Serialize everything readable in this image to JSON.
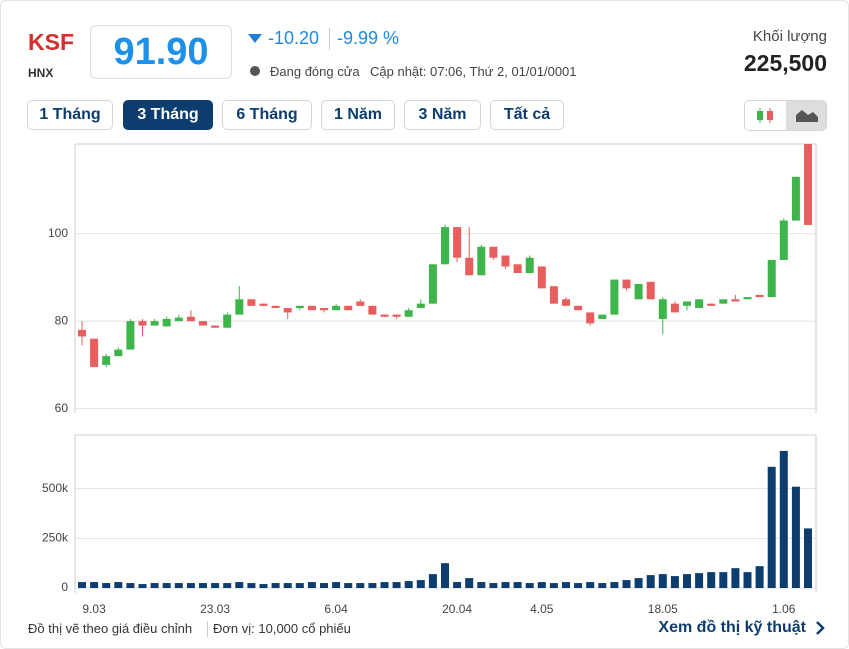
{
  "header": {
    "symbol": "KSF",
    "exchange": "HNX",
    "price": "91.90",
    "change": "-10.20",
    "change_percent": "-9.99 %",
    "status": "Đang đóng cửa",
    "updated": "Cập nhật: 07:06, Thứ 2, 01/01/0001",
    "volume_label": "Khối lượng",
    "volume": "225,500"
  },
  "tabs": [
    {
      "label": "1 Tháng",
      "active": false
    },
    {
      "label": "3 Tháng",
      "active": true
    },
    {
      "label": "6 Tháng",
      "active": false
    },
    {
      "label": "1 Năm",
      "active": false
    },
    {
      "label": "3 Năm",
      "active": false
    },
    {
      "label": "Tất cả",
      "active": false
    }
  ],
  "chart_data": [
    {
      "type": "candlestick",
      "up_color": "#3db54a",
      "down_color": "#e85d5d",
      "grid": true,
      "open": [
        78,
        76,
        70,
        72,
        73.5,
        80,
        79,
        78.8,
        80,
        81,
        80,
        79,
        78.5,
        81.5,
        85,
        84,
        83.5,
        83,
        83,
        83.5,
        83,
        82.5,
        83.5,
        84.5,
        83.5,
        81.5,
        81.5,
        81,
        83,
        84,
        93,
        101.5,
        94.5,
        90.5,
        97,
        95,
        93,
        91,
        92.5,
        88,
        85,
        83.5,
        82,
        80.5,
        81.5,
        89.5,
        85,
        89,
        80.5,
        84,
        83.5,
        83,
        84,
        84,
        85,
        85,
        86,
        85.5,
        94,
        103,
        120.5
      ],
      "high": [
        80,
        76,
        72.5,
        74,
        80.5,
        80.5,
        80.5,
        81,
        81.5,
        82.5,
        80,
        79,
        82,
        88,
        85,
        84,
        83.5,
        83,
        83.5,
        83.5,
        83,
        84,
        83.5,
        85,
        83.5,
        81.5,
        81.5,
        83,
        85,
        93,
        102,
        101.5,
        101.5,
        97.5,
        97,
        95,
        93,
        95,
        92.5,
        88,
        85.5,
        83.5,
        82,
        81.5,
        89.5,
        89.5,
        88.5,
        89,
        85.5,
        84.5,
        84.5,
        85,
        84,
        85,
        86,
        85.5,
        86,
        94,
        103.5,
        113,
        120.5
      ],
      "low": [
        74.5,
        69.5,
        69.5,
        72,
        73.5,
        76.5,
        79,
        78.8,
        80,
        80,
        79,
        78.5,
        78.5,
        81.5,
        83.5,
        83.5,
        83,
        80.5,
        82.5,
        82.5,
        82,
        82.5,
        82.5,
        83.5,
        81.5,
        81,
        80.5,
        81,
        83,
        84,
        93,
        93.5,
        90.5,
        90.5,
        94,
        92,
        91,
        91,
        87.5,
        84,
        83.5,
        82.5,
        79,
        80.5,
        81.5,
        87,
        85,
        85,
        77,
        82,
        82.5,
        83,
        83.5,
        84,
        84.5,
        85,
        85.5,
        85.5,
        94,
        103,
        102
      ],
      "close": [
        76.5,
        69.5,
        72,
        73.5,
        80,
        79,
        80,
        80.5,
        80.8,
        80,
        79,
        78.5,
        81.5,
        85,
        83.5,
        83.5,
        83,
        82,
        83.5,
        82.5,
        82.5,
        83.5,
        82.5,
        83.5,
        81.5,
        81,
        81,
        82.5,
        84,
        93,
        101.5,
        94.5,
        90.5,
        97,
        94.5,
        92.5,
        91,
        94.5,
        87.5,
        84,
        83.5,
        82.5,
        79.5,
        81.5,
        89.5,
        87.5,
        88.5,
        85,
        85,
        82,
        84.5,
        85,
        83.5,
        85,
        84.5,
        85.5,
        85.5,
        94,
        103,
        113,
        102
      ],
      "ylim": [
        59,
        120.5
      ],
      "yticks": [
        60,
        80,
        100
      ]
    },
    {
      "type": "bar",
      "color": "#0c3d6e",
      "grid": true,
      "categories": [
        null,
        "9.03",
        null,
        null,
        null,
        null,
        null,
        null,
        null,
        null,
        null,
        "23.03",
        null,
        null,
        null,
        null,
        null,
        null,
        null,
        null,
        null,
        "6.04",
        null,
        null,
        null,
        null,
        null,
        null,
        null,
        null,
        null,
        "20.04",
        null,
        null,
        null,
        null,
        null,
        null,
        "4.05",
        null,
        null,
        null,
        null,
        null,
        null,
        null,
        null,
        null,
        "18.05",
        null,
        null,
        null,
        null,
        null,
        null,
        null,
        null,
        null,
        "1.06",
        null,
        null
      ],
      "values": [
        30000,
        30000,
        25000,
        30000,
        25000,
        20000,
        25000,
        25000,
        25000,
        25000,
        25000,
        25000,
        25000,
        30000,
        25000,
        20000,
        25000,
        25000,
        25000,
        30000,
        25000,
        30000,
        25000,
        25000,
        25000,
        30000,
        30000,
        35000,
        40000,
        70000,
        125000,
        30000,
        50000,
        30000,
        25000,
        30000,
        30000,
        25000,
        30000,
        25000,
        30000,
        25000,
        30000,
        25000,
        30000,
        40000,
        50000,
        65000,
        70000,
        60000,
        70000,
        75000,
        80000,
        80000,
        100000,
        80000,
        110000,
        610000,
        690000,
        510000,
        300000
      ],
      "ylim": [
        -25000,
        770000
      ],
      "yticks": [
        0,
        {
          "value": 250000,
          "label": "250k"
        },
        {
          "value": 500000,
          "label": "500k"
        }
      ]
    }
  ],
  "footer": {
    "note": "Đồ thị vẽ theo giá điều chỉnh",
    "unit": "Đơn vị: 10,000 cổ phiếu",
    "link": "Xem đồ thị kỹ thuật"
  }
}
